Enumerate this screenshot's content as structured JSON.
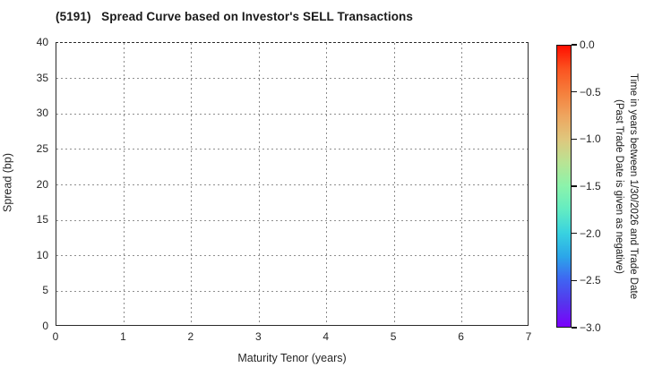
{
  "chart_data": {
    "type": "scatter",
    "title": "(5191)   Spread Curve based on Investor's SELL Transactions",
    "xlabel": "Maturity Tenor (years)",
    "ylabel": "Spread (bp)",
    "xlim": [
      0,
      7
    ],
    "ylim": [
      0,
      40
    ],
    "xticks": [
      0,
      1,
      2,
      3,
      4,
      5,
      6,
      7
    ],
    "yticks": [
      0,
      5,
      10,
      15,
      20,
      25,
      30,
      35,
      40
    ],
    "grid": "dotted",
    "legend": "none",
    "series": [],
    "points": [],
    "colorbar": {
      "title_lines": [
        "Time in years between 1/30/2026 and Trade Date",
        "(Past Trade Date is given as negative)"
      ],
      "colormap": "rainbow",
      "range": [
        0.0,
        -3.0
      ],
      "ticks": [
        0.0,
        -0.5,
        -1.0,
        -1.5,
        -2.0,
        -2.5,
        -3.0
      ],
      "tick_labels": [
        "0.0",
        "−0.5",
        "−1.0",
        "−1.5",
        "−2.0",
        "−2.5",
        "−3.0"
      ],
      "gradient_top_to_bottom": [
        "#ff0f00",
        "#fb5320",
        "#f57f3c",
        "#eea55f",
        "#dfc77d",
        "#b8e494",
        "#8bf3ab",
        "#63ecc2",
        "#38d2e0",
        "#2ba6e9",
        "#3f64f2",
        "#5634ed",
        "#7b00fb"
      ]
    },
    "colors": {
      "spine": "#2b2b2b",
      "grid": "#8f8f8f",
      "text": "#262626",
      "background": "#ffffff"
    }
  }
}
